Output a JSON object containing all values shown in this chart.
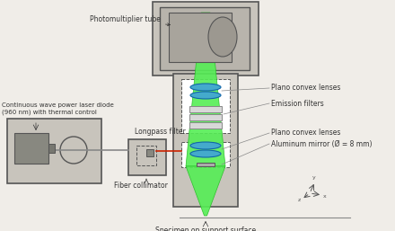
{
  "bg_color": "#f0ede8",
  "dark_gray": "#555555",
  "mid_gray": "#888888",
  "light_gray": "#cccccc",
  "housing_fill": "#c8c4bc",
  "housing_fill2": "#b8b4ac",
  "pmt_fill": "#a8a49c",
  "green_light": "#55ee55",
  "green_dark": "#22bb22",
  "cyan_blue": "#44aacc",
  "cyan_edge": "#1166aa",
  "red_line": "#cc2200",
  "filter_fill": "#d8d8d8",
  "laser_box_fill": "#888880",
  "labels": {
    "photomultiplier": "Photomultiplier tube",
    "laser": "Continuous wave power laser diode\n(960 nm) with thermal control",
    "longpass": "Longpass filter",
    "fiber": "Fiber collimator",
    "specimen": "Specimen on support surface",
    "plano_top": "Plano convex lenses",
    "emission": "Emission filters",
    "plano_bot": "Plano convex lenses",
    "aluminum": "Aluminum mirror (Ø = 8 mm)"
  },
  "figsize": [
    4.4,
    2.57
  ],
  "dpi": 100
}
